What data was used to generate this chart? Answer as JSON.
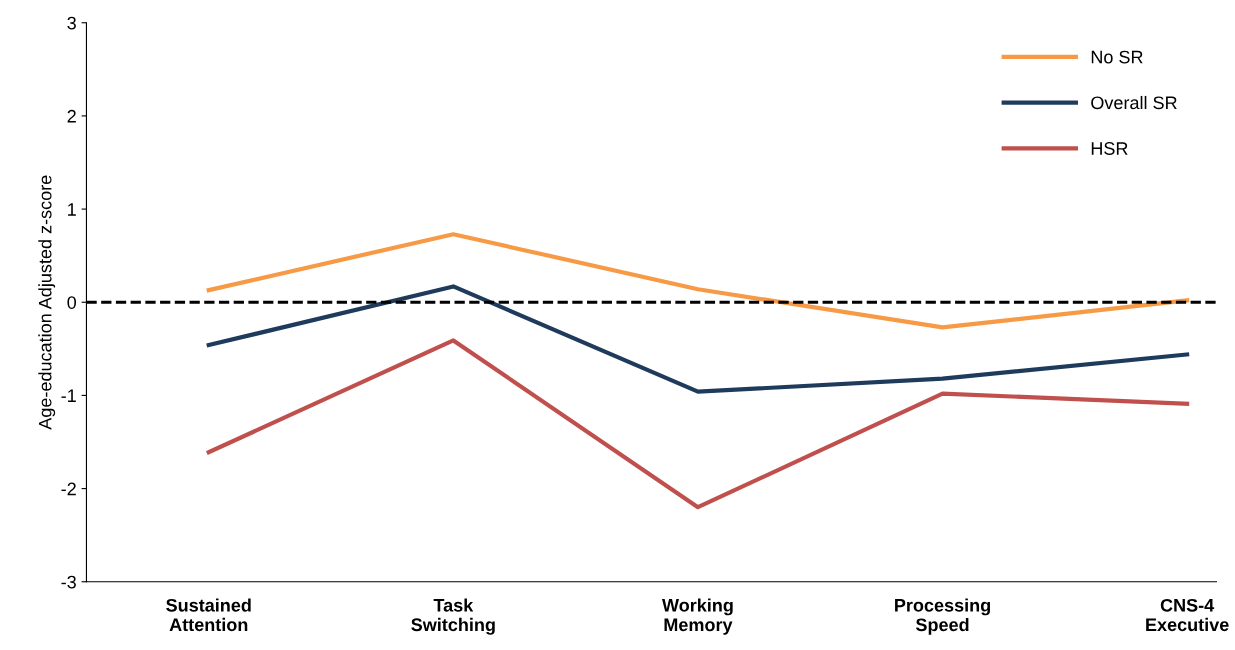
{
  "chart_data": {
    "type": "line",
    "ylabel": "Age-education Adjusted z-score",
    "categories": [
      "Sustained\nAttention",
      "Task\nSwitching",
      "Working\nMemory",
      "Processing\nSpeed",
      "CNS-4\nExecutive"
    ],
    "series": [
      {
        "name": "No SR",
        "color": "#f79a46",
        "values": [
          0.13,
          0.73,
          0.14,
          -0.27,
          0.02
        ]
      },
      {
        "name": "Overall SR",
        "color": "#1f3b5c",
        "values": [
          -0.46,
          0.17,
          -0.96,
          -0.82,
          -0.56
        ]
      },
      {
        "name": "HSR",
        "color": "#c0504d",
        "values": [
          -1.61,
          -0.41,
          -2.2,
          -0.98,
          -1.09
        ]
      }
    ],
    "ylim": [
      -3,
      3
    ],
    "yticks": [
      -3,
      -2,
      -1,
      0,
      1,
      2,
      3
    ],
    "ref_lines": [
      {
        "axis": "y",
        "value": 0,
        "color": "#000000",
        "line_style": "dashed"
      }
    ],
    "grid": false,
    "legend": "top right",
    "marker": "none",
    "line_style": "solid"
  }
}
